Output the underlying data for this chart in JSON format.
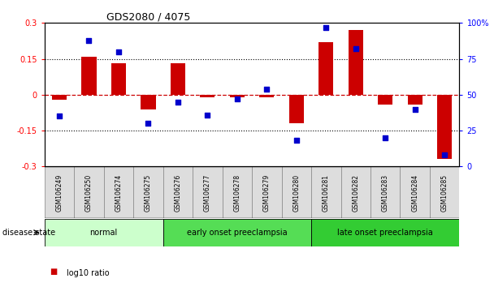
{
  "title": "GDS2080 / 4075",
  "samples": [
    "GSM106249",
    "GSM106250",
    "GSM106274",
    "GSM106275",
    "GSM106276",
    "GSM106277",
    "GSM106278",
    "GSM106279",
    "GSM106280",
    "GSM106281",
    "GSM106282",
    "GSM106283",
    "GSM106284",
    "GSM106285"
  ],
  "log10_ratio": [
    -0.02,
    0.16,
    0.13,
    -0.06,
    0.13,
    -0.01,
    -0.01,
    -0.01,
    -0.12,
    0.22,
    0.27,
    -0.04,
    -0.04,
    -0.27
  ],
  "percentile_rank": [
    35,
    88,
    80,
    30,
    45,
    36,
    47,
    54,
    18,
    97,
    82,
    20,
    40,
    8
  ],
  "disease_groups": [
    {
      "label": "normal",
      "start": 0,
      "end": 4,
      "color": "#ccffcc"
    },
    {
      "label": "early onset preeclampsia",
      "start": 4,
      "end": 9,
      "color": "#55dd55"
    },
    {
      "label": "late onset preeclampsia",
      "start": 9,
      "end": 14,
      "color": "#33cc33"
    }
  ],
  "bar_color": "#cc0000",
  "dot_color": "#0000cc",
  "zero_line_color": "#cc0000",
  "grid_color": "#000000",
  "ylim_left": [
    -0.3,
    0.3
  ],
  "ylim_right": [
    0,
    100
  ],
  "yticks_left": [
    -0.3,
    -0.15,
    0,
    0.15,
    0.3
  ],
  "yticks_right": [
    0,
    25,
    50,
    75,
    100
  ],
  "ytick_labels_right": [
    "0",
    "25",
    "50",
    "75",
    "100%"
  ],
  "bar_width": 0.5,
  "dot_size": 22,
  "background_color": "#ffffff",
  "sample_box_color": "#dddddd",
  "sample_box_edge": "#888888"
}
